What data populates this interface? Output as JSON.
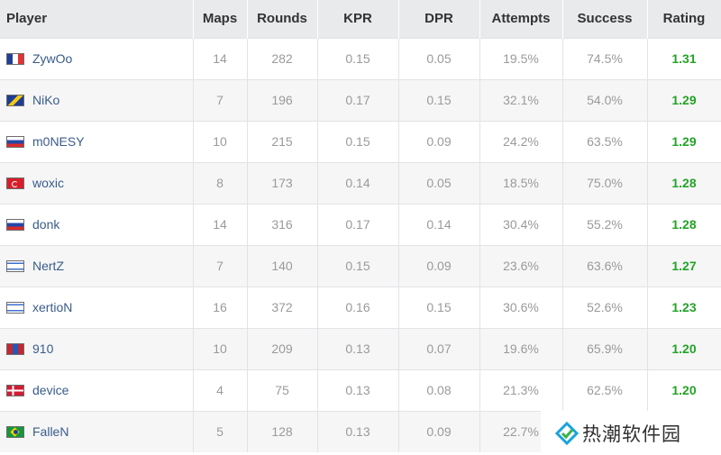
{
  "table": {
    "headers": [
      "Player",
      "Maps",
      "Rounds",
      "KPR",
      "DPR",
      "Attempts",
      "Success",
      "Rating"
    ],
    "rows": [
      {
        "flag": "fr",
        "player": "ZywOo",
        "maps": "14",
        "rounds": "282",
        "kpr": "0.15",
        "dpr": "0.05",
        "attempts": "19.5%",
        "success": "74.5%",
        "rating": "1.31"
      },
      {
        "flag": "ba",
        "player": "NiKo",
        "maps": "7",
        "rounds": "196",
        "kpr": "0.17",
        "dpr": "0.15",
        "attempts": "32.1%",
        "success": "54.0%",
        "rating": "1.29"
      },
      {
        "flag": "ru",
        "player": "m0NESY",
        "maps": "10",
        "rounds": "215",
        "kpr": "0.15",
        "dpr": "0.09",
        "attempts": "24.2%",
        "success": "63.5%",
        "rating": "1.29"
      },
      {
        "flag": "tr",
        "player": "woxic",
        "maps": "8",
        "rounds": "173",
        "kpr": "0.14",
        "dpr": "0.05",
        "attempts": "18.5%",
        "success": "75.0%",
        "rating": "1.28"
      },
      {
        "flag": "ru",
        "player": "donk",
        "maps": "14",
        "rounds": "316",
        "kpr": "0.17",
        "dpr": "0.14",
        "attempts": "30.4%",
        "success": "55.2%",
        "rating": "1.28"
      },
      {
        "flag": "il",
        "player": "NertZ",
        "maps": "7",
        "rounds": "140",
        "kpr": "0.15",
        "dpr": "0.09",
        "attempts": "23.6%",
        "success": "63.6%",
        "rating": "1.27"
      },
      {
        "flag": "il",
        "player": "xertioN",
        "maps": "16",
        "rounds": "372",
        "kpr": "0.16",
        "dpr": "0.15",
        "attempts": "30.6%",
        "success": "52.6%",
        "rating": "1.23"
      },
      {
        "flag": "mn",
        "player": "910",
        "maps": "10",
        "rounds": "209",
        "kpr": "0.13",
        "dpr": "0.07",
        "attempts": "19.6%",
        "success": "65.9%",
        "rating": "1.20"
      },
      {
        "flag": "dk",
        "player": "device",
        "maps": "4",
        "rounds": "75",
        "kpr": "0.13",
        "dpr": "0.08",
        "attempts": "21.3%",
        "success": "62.5%",
        "rating": "1.20"
      },
      {
        "flag": "br",
        "player": "FalleN",
        "maps": "5",
        "rounds": "128",
        "kpr": "0.13",
        "dpr": "0.09",
        "attempts": "22.7%",
        "success": "",
        "rating": ""
      }
    ]
  },
  "watermark": {
    "text": "热潮软件园",
    "icon": "logo-icon"
  },
  "colors": {
    "header_bg": "#e9eaec",
    "player_link": "#395c8a",
    "rating": "#24a328",
    "muted": "#9a9a9a"
  }
}
